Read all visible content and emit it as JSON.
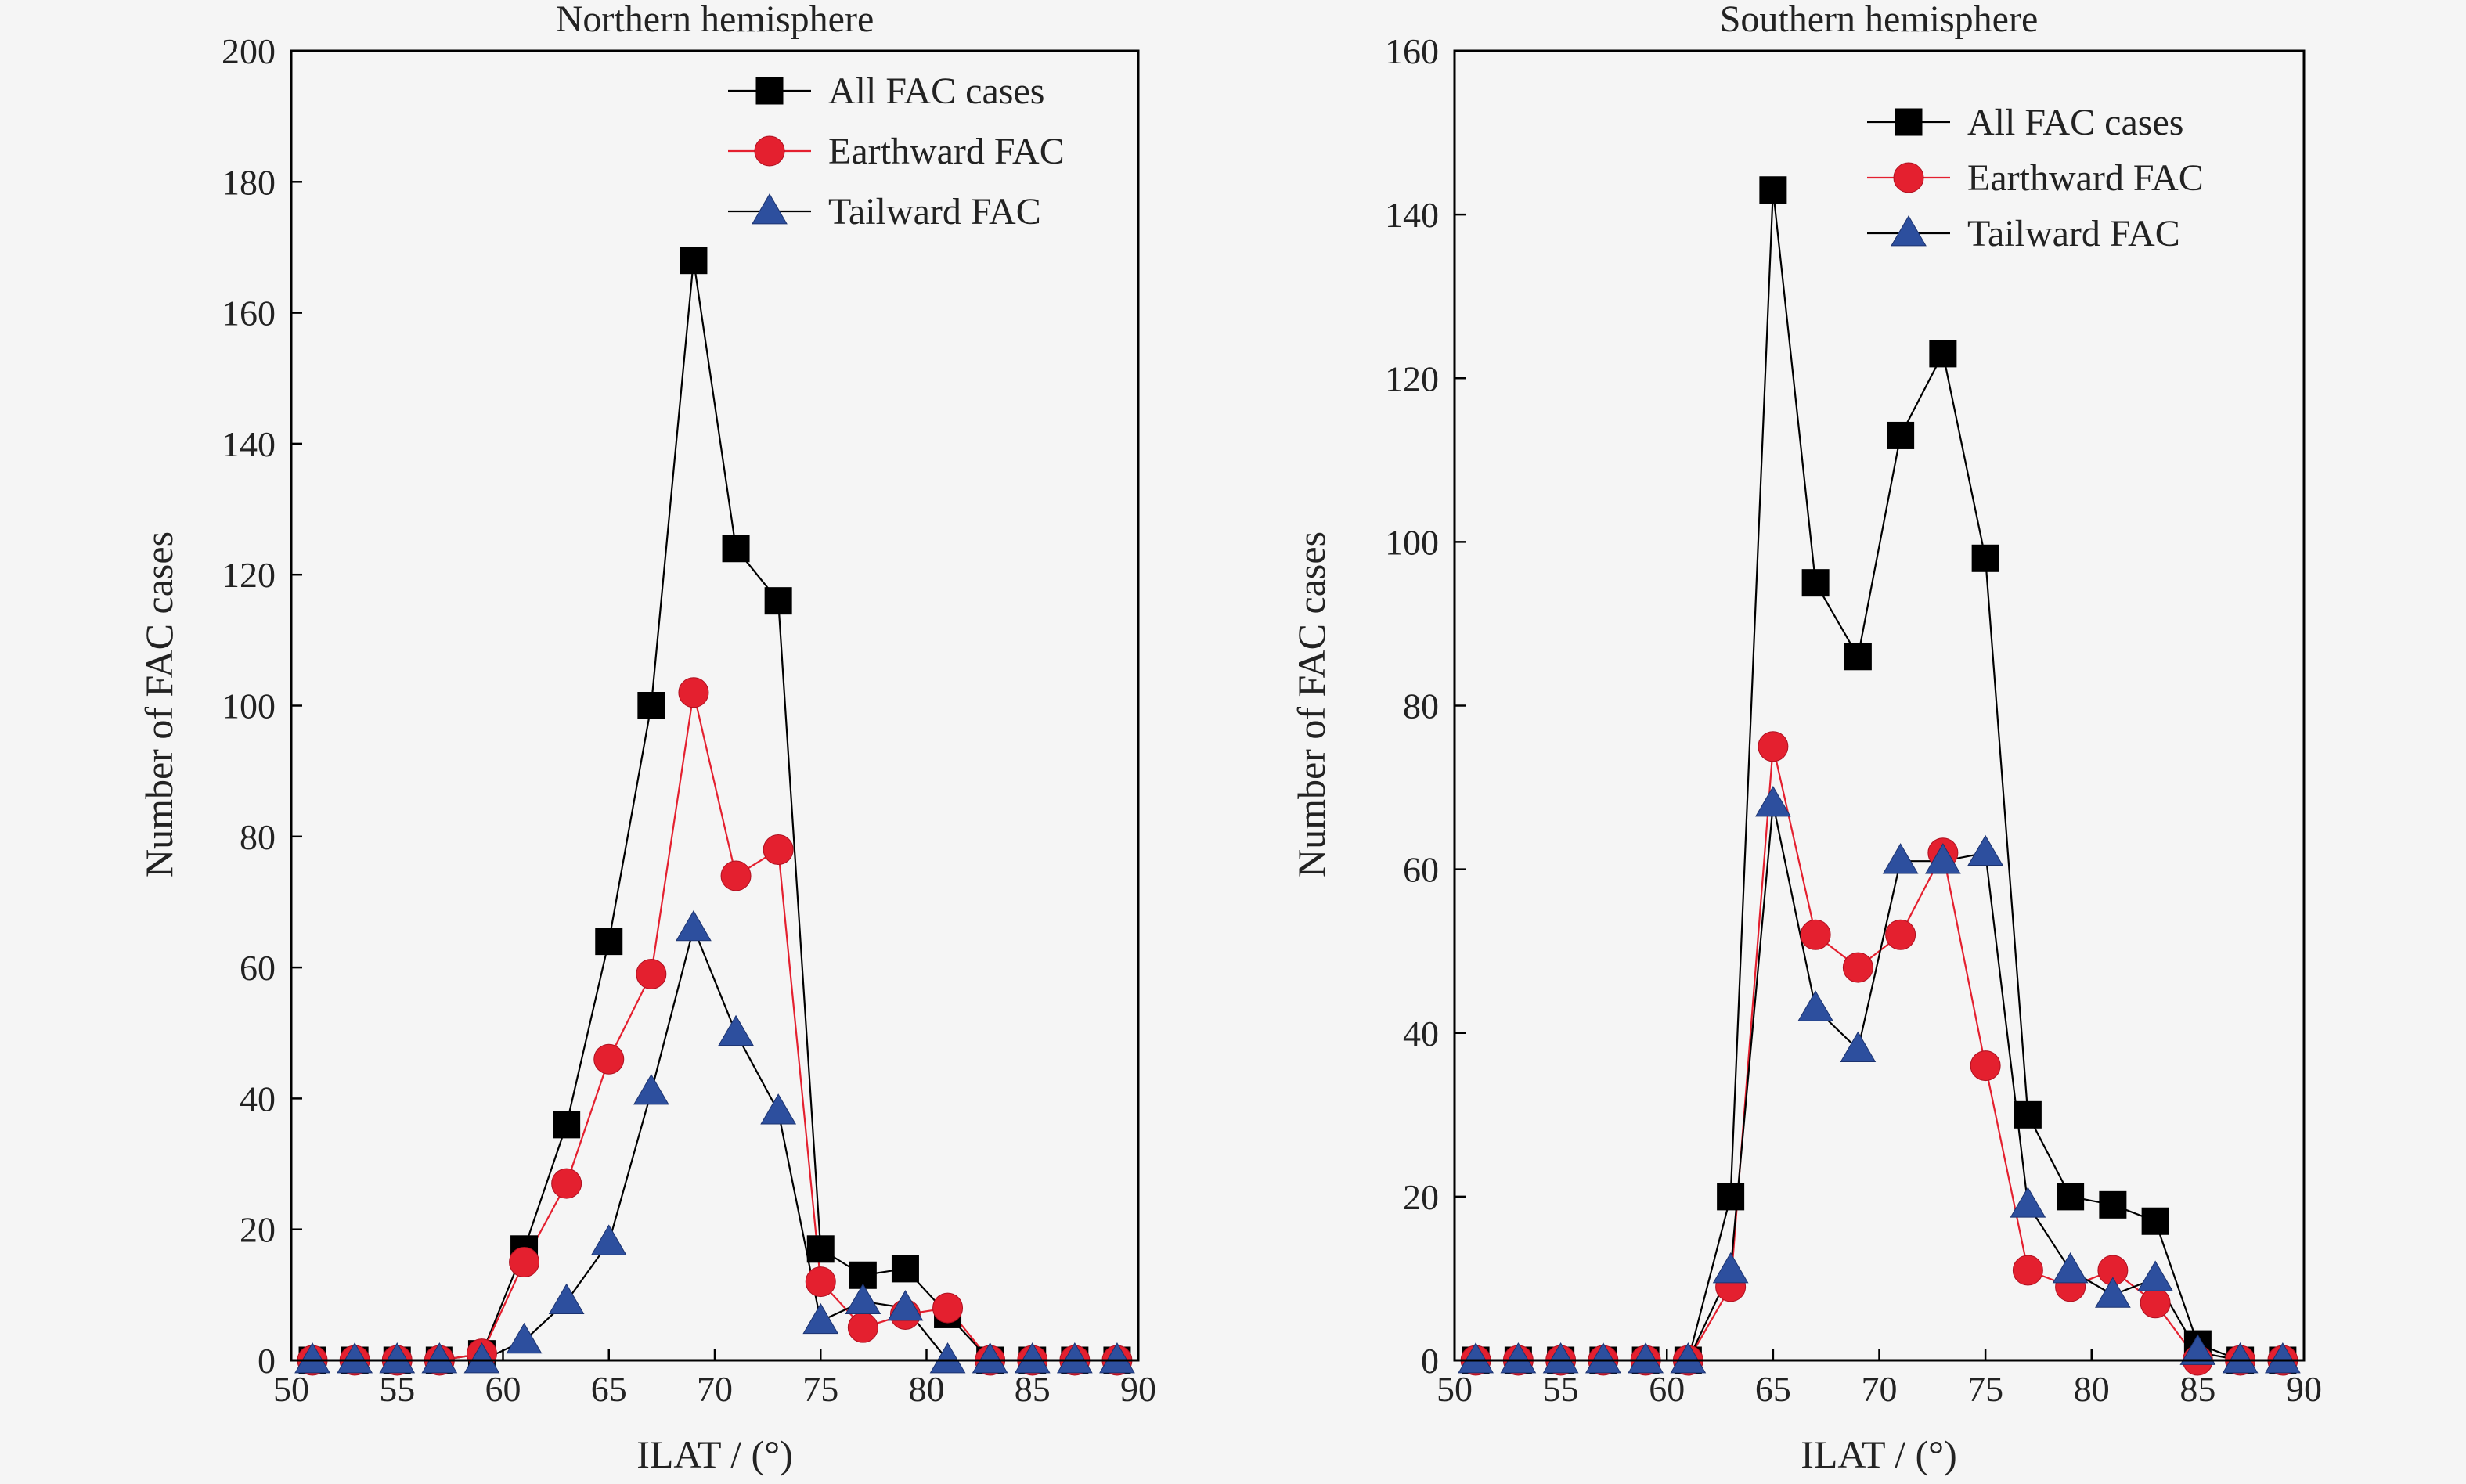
{
  "chart_data": [
    {
      "type": "line",
      "title": "Northern hemisphere",
      "xlabel": "ILAT / (°)",
      "ylabel": "Number of FAC cases",
      "xlim": [
        50,
        90
      ],
      "ylim": [
        0,
        200
      ],
      "xticks": [
        50,
        55,
        60,
        65,
        70,
        75,
        80,
        85,
        90
      ],
      "yticks": [
        0,
        20,
        40,
        60,
        80,
        100,
        120,
        140,
        160,
        180,
        200
      ],
      "legend_position": "top-right",
      "x": [
        51,
        53,
        55,
        57,
        59,
        61,
        63,
        65,
        67,
        69,
        71,
        73,
        75,
        77,
        79,
        81,
        83,
        85,
        87,
        89
      ],
      "series": [
        {
          "name": "All FAC cases",
          "marker": "square",
          "color": "#000000",
          "line_color": "#000000",
          "values": [
            0,
            0,
            0,
            0,
            1,
            17,
            36,
            64,
            100,
            168,
            124,
            116,
            17,
            13,
            14,
            7,
            0,
            0,
            0,
            0
          ]
        },
        {
          "name": "Earthward FAC",
          "marker": "circle",
          "color": "#e4202f",
          "line_color": "#e4202f",
          "values": [
            0,
            0,
            0,
            0,
            1,
            15,
            27,
            46,
            59,
            102,
            74,
            78,
            12,
            5,
            7,
            8,
            0,
            0,
            0,
            0
          ]
        },
        {
          "name": "Tailward FAC",
          "marker": "triangle",
          "color": "#2d4f9e",
          "line_color": "#000000",
          "values": [
            0,
            0,
            0,
            0,
            0,
            3,
            9,
            18,
            41,
            66,
            50,
            38,
            6,
            9,
            8,
            0,
            0,
            0,
            0,
            0
          ]
        }
      ]
    },
    {
      "type": "line",
      "title": "Southern hemisphere",
      "xlabel": "ILAT / (°)",
      "ylabel": "Number of FAC cases",
      "xlim": [
        50,
        90
      ],
      "ylim": [
        0,
        160
      ],
      "xticks": [
        50,
        55,
        60,
        65,
        70,
        75,
        80,
        85,
        90
      ],
      "yticks": [
        0,
        20,
        40,
        60,
        80,
        100,
        120,
        140,
        160
      ],
      "legend_position": "top-right",
      "x": [
        51,
        53,
        55,
        57,
        59,
        61,
        63,
        65,
        67,
        69,
        71,
        73,
        75,
        77,
        79,
        81,
        83,
        85,
        87,
        89
      ],
      "series": [
        {
          "name": "All FAC cases",
          "marker": "square",
          "color": "#000000",
          "line_color": "#000000",
          "values": [
            0,
            0,
            0,
            0,
            0,
            0,
            20,
            143,
            95,
            86,
            113,
            123,
            98,
            30,
            20,
            19,
            17,
            2,
            0,
            0
          ]
        },
        {
          "name": "Earthward FAC",
          "marker": "circle",
          "color": "#e4202f",
          "line_color": "#e4202f",
          "values": [
            0,
            0,
            0,
            0,
            0,
            0,
            9,
            75,
            52,
            48,
            52,
            62,
            36,
            11,
            9,
            11,
            7,
            0,
            0,
            0
          ]
        },
        {
          "name": "Tailward FAC",
          "marker": "triangle",
          "color": "#2d4f9e",
          "line_color": "#000000",
          "values": [
            0,
            0,
            0,
            0,
            0,
            0,
            11,
            68,
            43,
            38,
            61,
            61,
            62,
            19,
            11,
            8,
            10,
            1,
            0,
            0
          ]
        }
      ]
    }
  ]
}
